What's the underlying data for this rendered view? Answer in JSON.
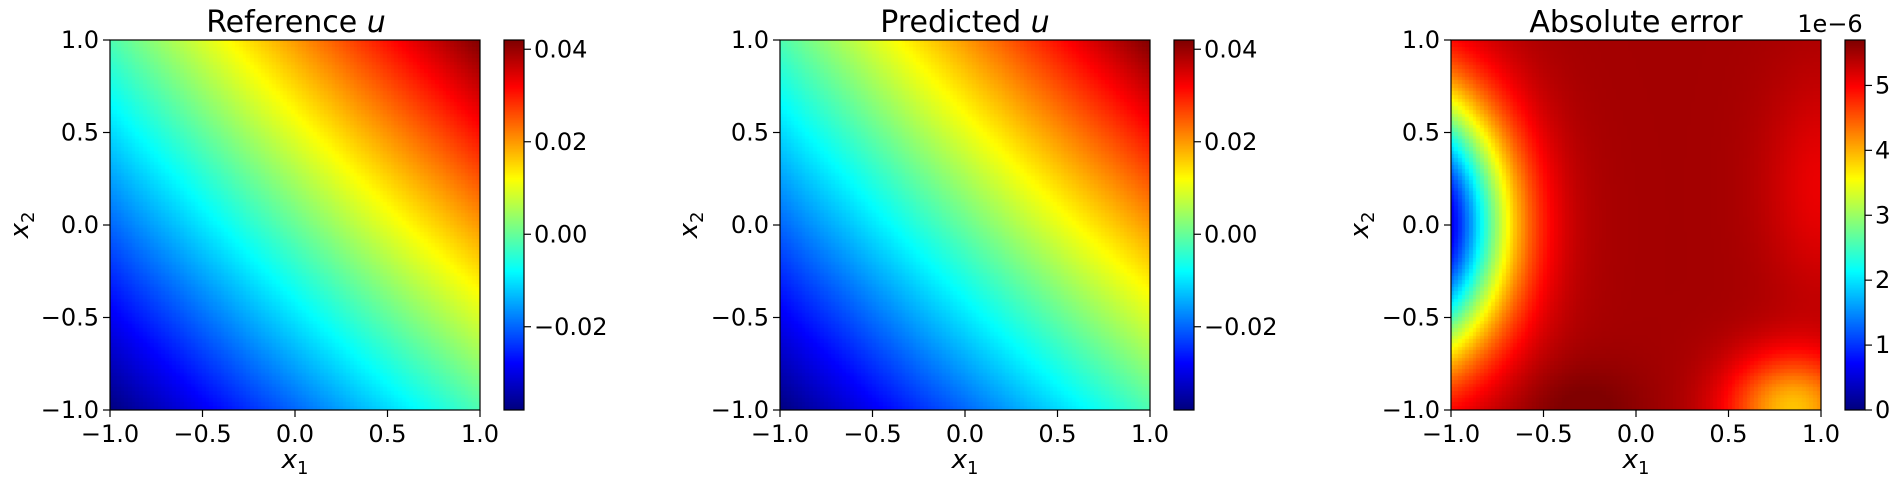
{
  "chart_data": [
    {
      "type": "heatmap",
      "title": "Reference u",
      "title_plain": "Reference ",
      "title_var": "u",
      "xlabel": "x1",
      "ylabel": "x2",
      "xlim": [
        -1.0,
        1.0
      ],
      "ylim": [
        -1.0,
        1.0
      ],
      "xticks": [
        "−1.0",
        "−0.5",
        "0.0",
        "0.5",
        "1.0"
      ],
      "yticks": [
        "1.0",
        "0.5",
        "0.0",
        "−0.5",
        "−1.0"
      ],
      "colormap": "jet",
      "field": "u = 0.02*(x1 + x2) + 0.002*x1*x2",
      "vmin": -0.038,
      "vmax": 0.042,
      "colorbar_ticks": [
        0.04,
        0.02,
        0.0,
        -0.02
      ],
      "colorbar_tick_labels": [
        "0.04",
        "0.02",
        "0.00",
        "−0.02"
      ],
      "colorbar_offset_label": ""
    },
    {
      "type": "heatmap",
      "title": "Predicted u",
      "title_plain": "Predicted ",
      "title_var": "u",
      "xlabel": "x1",
      "ylabel": "x2",
      "xlim": [
        -1.0,
        1.0
      ],
      "ylim": [
        -1.0,
        1.0
      ],
      "xticks": [
        "−1.0",
        "−0.5",
        "0.0",
        "0.5",
        "1.0"
      ],
      "yticks": [
        "1.0",
        "0.5",
        "0.0",
        "−0.5",
        "−1.0"
      ],
      "colormap": "jet",
      "field": "u = 0.02*(x1 + x2) + 0.002*x1*x2",
      "vmin": -0.038,
      "vmax": 0.042,
      "colorbar_ticks": [
        0.04,
        0.02,
        0.0,
        -0.02
      ],
      "colorbar_tick_labels": [
        "0.04",
        "0.02",
        "0.00",
        "−0.02"
      ],
      "colorbar_offset_label": ""
    },
    {
      "type": "heatmap",
      "title": "Absolute error",
      "title_plain": "Absolute error",
      "title_var": "",
      "xlabel": "x1",
      "ylabel": "x2",
      "xlim": [
        -1.0,
        1.0
      ],
      "ylim": [
        -1.0,
        1.0
      ],
      "xticks": [
        "−1.0",
        "−0.5",
        "0.0",
        "0.5",
        "1.0"
      ],
      "yticks": [
        "1.0",
        "0.5",
        "0.0",
        "−0.5",
        "−1.0"
      ],
      "colormap": "jet",
      "field": "|u_ref - u_pred|, minimum ~0 near x1=-1, maximum ~5.7e-6 near x1 in [-0.4, 0.2]",
      "vmin": 0,
      "vmax": 5.7,
      "colorbar_ticks": [
        5,
        4,
        3,
        2,
        1,
        0
      ],
      "colorbar_tick_labels": [
        "5",
        "4",
        "3",
        "2",
        "1",
        "0"
      ],
      "colorbar_offset_label": "1e−6"
    }
  ]
}
